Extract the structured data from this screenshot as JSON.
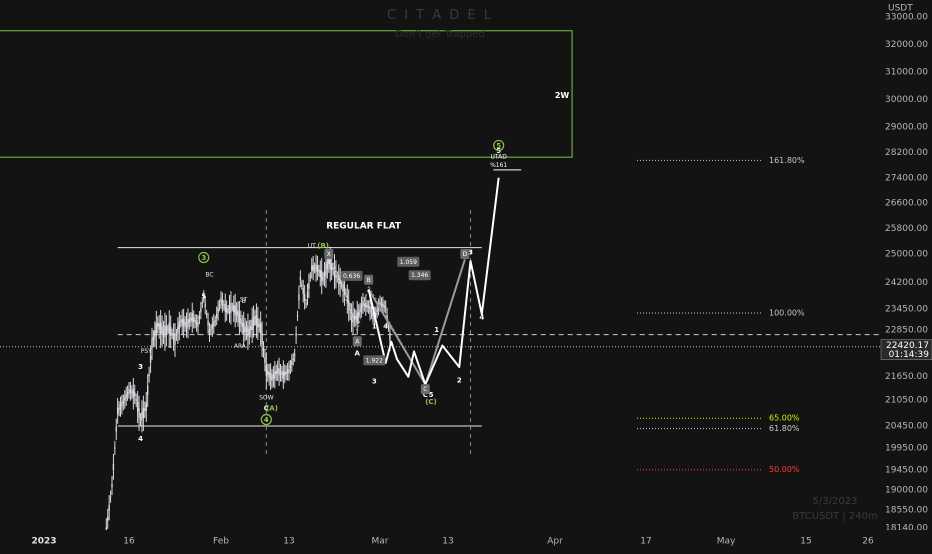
{
  "brand": {
    "watermark": "C I T A D E L",
    "slogan": "Don't get Trapped",
    "date_stamp": "5/3/2023",
    "symbol_stamp": "BTCUSDT | 240m"
  },
  "colors": {
    "background": "#131313",
    "candle": "#d7d9de",
    "zone": "#7ac943",
    "wave": "#ffffff",
    "level_text": "#c8c8c8",
    "fib_65": "#c6ff00",
    "fib_50": "#ff3b3b",
    "green_circle": "#8bc34a"
  },
  "chart_data": {
    "type": "candlestick",
    "symbol": "BTCUSDT",
    "quote_currency": "USDT",
    "interval": "240m",
    "y_axis_unit": "USDT",
    "ylim": [
      17900,
      33200
    ],
    "y_ticks": [
      33000,
      32000,
      31000,
      30000,
      29000,
      28200,
      27400,
      26600,
      25800,
      25000,
      24200,
      23450,
      22850,
      21650,
      21050,
      20450,
      19950,
      19450,
      19000,
      18550,
      18140
    ],
    "y_tick_labels": [
      "33000.00",
      "32000.00",
      "31000.00",
      "30000.00",
      "29000.00",
      "28200.00",
      "27400.00",
      "26600.00",
      "25800.00",
      "25000.00",
      "24200.00",
      "23450.00",
      "22850.00",
      "21650.00",
      "21050.00",
      "20450.00",
      "19950.00",
      "19450.00",
      "19000.00",
      "18550.00",
      "18140.00"
    ],
    "x_ticks": [
      {
        "date": "2023-01-01",
        "label": "2023"
      },
      {
        "date": "2023-01-16",
        "label": "16"
      },
      {
        "date": "2023-02-01",
        "label": "Feb"
      },
      {
        "date": "2023-02-13",
        "label": "13"
      },
      {
        "date": "2023-03-01",
        "label": "Mar"
      },
      {
        "date": "2023-03-13",
        "label": "13"
      },
      {
        "date": "2023-04-01",
        "label": "Apr"
      },
      {
        "date": "2023-04-17",
        "label": "17"
      },
      {
        "date": "2023-05-01",
        "label": "May"
      },
      {
        "date": "2023-05-15",
        "label": "15"
      },
      {
        "date": "2023-05-26",
        "label": "26"
      }
    ],
    "current_price": {
      "value": 22420.17,
      "label": "22420.17",
      "countdown": "01:14:39"
    },
    "price_path": [
      {
        "date": "2023-01-12",
        "price": 18100
      },
      {
        "date": "2023-01-13",
        "price": 19100
      },
      {
        "date": "2023-01-14",
        "price": 20800
      },
      {
        "date": "2023-01-15",
        "price": 21000
      },
      {
        "date": "2023-01-16",
        "price": 21300
      },
      {
        "date": "2023-01-17",
        "price": 21200
      },
      {
        "date": "2023-01-18",
        "price": 20600
      },
      {
        "date": "2023-01-19",
        "price": 20900
      },
      {
        "date": "2023-01-20",
        "price": 22500
      },
      {
        "date": "2023-01-21",
        "price": 23000
      },
      {
        "date": "2023-01-22",
        "price": 22800
      },
      {
        "date": "2023-01-23",
        "price": 22900
      },
      {
        "date": "2023-01-24",
        "price": 22600
      },
      {
        "date": "2023-01-25",
        "price": 23100
      },
      {
        "date": "2023-01-26",
        "price": 23000
      },
      {
        "date": "2023-01-27",
        "price": 23200
      },
      {
        "date": "2023-01-28",
        "price": 23000
      },
      {
        "date": "2023-01-29",
        "price": 23800
      },
      {
        "date": "2023-01-30",
        "price": 22800
      },
      {
        "date": "2023-01-31",
        "price": 23100
      },
      {
        "date": "2023-02-01",
        "price": 23700
      },
      {
        "date": "2023-02-02",
        "price": 23400
      },
      {
        "date": "2023-02-03",
        "price": 23500
      },
      {
        "date": "2023-02-04",
        "price": 23300
      },
      {
        "date": "2023-02-05",
        "price": 22900
      },
      {
        "date": "2023-02-06",
        "price": 22800
      },
      {
        "date": "2023-02-07",
        "price": 23200
      },
      {
        "date": "2023-02-08",
        "price": 22900
      },
      {
        "date": "2023-02-09",
        "price": 21800
      },
      {
        "date": "2023-02-10",
        "price": 21600
      },
      {
        "date": "2023-02-11",
        "price": 21800
      },
      {
        "date": "2023-02-12",
        "price": 21700
      },
      {
        "date": "2023-02-13",
        "price": 21800
      },
      {
        "date": "2023-02-14",
        "price": 22200
      },
      {
        "date": "2023-02-15",
        "price": 24300
      },
      {
        "date": "2023-02-16",
        "price": 23600
      },
      {
        "date": "2023-02-17",
        "price": 24600
      },
      {
        "date": "2023-02-18",
        "price": 24600
      },
      {
        "date": "2023-02-19",
        "price": 24300
      },
      {
        "date": "2023-02-20",
        "price": 24800
      },
      {
        "date": "2023-02-21",
        "price": 24500
      },
      {
        "date": "2023-02-22",
        "price": 24200
      },
      {
        "date": "2023-02-23",
        "price": 23900
      },
      {
        "date": "2023-02-24",
        "price": 23200
      },
      {
        "date": "2023-02-25",
        "price": 23200
      },
      {
        "date": "2023-02-26",
        "price": 23600
      },
      {
        "date": "2023-02-27",
        "price": 23500
      },
      {
        "date": "2023-02-28",
        "price": 23200
      },
      {
        "date": "2023-03-01",
        "price": 23600
      },
      {
        "date": "2023-03-02",
        "price": 23500
      },
      {
        "date": "2023-03-03",
        "price": 22400
      }
    ],
    "annotations": {
      "title": "REGULAR FLAT",
      "zone_label": "2W",
      "target_text": [
        "UTAD",
        "%161"
      ],
      "wyckoff_labels": [
        {
          "text": "PSY",
          "date": "2023-01-19",
          "price": 22300
        },
        {
          "text": "BC",
          "date": "2023-01-30",
          "price": 24400
        },
        {
          "text": "ST",
          "date": "2023-02-05",
          "price": 23700
        },
        {
          "text": "B",
          "date": "2023-02-05",
          "price": 23650
        },
        {
          "text": "AR",
          "date": "2023-02-04",
          "price": 22430
        },
        {
          "text": "A",
          "date": "2023-02-05",
          "price": 22430
        },
        {
          "text": "SOW",
          "date": "2023-02-09",
          "price": 21100
        },
        {
          "text": "UT",
          "date": "2023-02-17",
          "price": 25250
        }
      ],
      "wave_labels": [
        {
          "text": "3",
          "date": "2023-01-18",
          "price": 21900
        },
        {
          "text": "4",
          "date": "2023-01-18",
          "price": 20150
        },
        {
          "text": "5",
          "date": "2023-01-29",
          "price": 23800
        },
        {
          "text": "C",
          "date": "2023-02-09",
          "price": 20850
        },
        {
          "text": "(A)",
          "date": "2023-02-10",
          "price": 20850
        },
        {
          "text": "(B)",
          "date": "2023-02-19",
          "price": 25250
        },
        {
          "text": "A",
          "date": "2023-02-25",
          "price": 22250
        },
        {
          "text": "1",
          "date": "2023-02-28",
          "price": 22950
        },
        {
          "text": "3",
          "date": "2023-02-28",
          "price": 21520
        },
        {
          "text": "4",
          "date": "2023-03-02",
          "price": 22950
        },
        {
          "text": "C",
          "date": "2023-03-09",
          "price": 21180
        },
        {
          "text": "5",
          "date": "2023-03-10",
          "price": 21180
        },
        {
          "text": "(C)",
          "date": "2023-03-10",
          "price": 21000
        },
        {
          "text": "1",
          "date": "2023-03-11",
          "price": 22850
        },
        {
          "text": "2",
          "date": "2023-03-15",
          "price": 21550
        },
        {
          "text": "3",
          "date": "2023-03-17",
          "price": 25050
        },
        {
          "text": "4",
          "date": "2023-03-19",
          "price": 23200
        },
        {
          "text": "5",
          "date": "2023-03-22",
          "price": 28250
        }
      ],
      "circled_labels": [
        {
          "text": "3",
          "date": "2023-01-29",
          "price": 24900
        },
        {
          "text": "4",
          "date": "2023-02-09",
          "price": 20600
        },
        {
          "text": "5",
          "date": "2023-03-22",
          "price": 28420
        }
      ],
      "boxed_labels": [
        {
          "text": "X",
          "date": "2023-02-20",
          "price": 25000
        },
        {
          "text": "A",
          "date": "2023-02-25",
          "price": 22560
        },
        {
          "text": "B",
          "date": "2023-02-27",
          "price": 24270
        },
        {
          "text": "C",
          "date": "2023-03-09",
          "price": 21330
        },
        {
          "text": "D",
          "date": "2023-03-16",
          "price": 25000
        }
      ],
      "ratio_labels": [
        {
          "text": "0.636",
          "date": "2023-02-24",
          "price": 24380
        },
        {
          "text": "1.059",
          "date": "2023-03-06",
          "price": 24780
        },
        {
          "text": "1.346",
          "date": "2023-03-08",
          "price": 24400
        },
        {
          "text": "1.922",
          "date": "2023-02-28",
          "price": 22070
        }
      ],
      "wave_path": [
        {
          "date": "2023-02-27",
          "price": 24000
        },
        {
          "date": "2023-03-02",
          "price": 22000
        },
        {
          "date": "2023-03-03",
          "price": 22550
        },
        {
          "date": "2023-03-04",
          "price": 22100
        },
        {
          "date": "2023-03-06",
          "price": 21650
        },
        {
          "date": "2023-03-07",
          "price": 22300
        },
        {
          "date": "2023-03-09",
          "price": 21450
        },
        {
          "date": "2023-03-12",
          "price": 22450
        },
        {
          "date": "2023-03-15",
          "price": 21900
        },
        {
          "date": "2023-03-17",
          "price": 24800
        },
        {
          "date": "2023-03-19",
          "price": 23300
        },
        {
          "date": "2023-03-22",
          "price": 27400
        }
      ],
      "abc_path": [
        {
          "date": "2023-02-27",
          "price": 24000
        },
        {
          "date": "2023-03-09",
          "price": 21450
        },
        {
          "date": "2023-03-16",
          "price": 24850
        }
      ],
      "xabcd_path": [
        {
          "date": "2023-02-20",
          "price": 25000
        },
        {
          "date": "2023-02-25",
          "price": 22800
        },
        {
          "date": "2023-02-27",
          "price": 24100
        },
        {
          "date": "2023-03-09",
          "price": 21450
        },
        {
          "date": "2023-03-16",
          "price": 24850
        }
      ],
      "flat_box": {
        "top": 25200,
        "bottom": 20450,
        "start": "2023-01-14",
        "end": "2023-03-19"
      },
      "mid_dashed_price": 22730,
      "vertical_dashed_dates": [
        "2023-02-09",
        "2023-03-17"
      ],
      "target_zone": {
        "top": 32500,
        "bottom": 28050,
        "start": "2022-12-01",
        "end": "2023-04-04"
      },
      "target_line_price": 27650,
      "fib_levels": [
        {
          "label": "161.80%",
          "price": 27950,
          "color": "#c8c8c8",
          "style": "dotted"
        },
        {
          "label": "100.00%",
          "price": 23330,
          "color": "#c8c8c8",
          "style": "dotted"
        },
        {
          "label": "65.00%",
          "price": 20630,
          "color": "#c6ff00",
          "style": "dotted"
        },
        {
          "label": "61.80%",
          "price": 20390,
          "color": "#c8c8c8",
          "style": "dotted"
        },
        {
          "label": "50.00%",
          "price": 19460,
          "color": "#ff3b3b",
          "style": "dotted"
        }
      ]
    }
  }
}
